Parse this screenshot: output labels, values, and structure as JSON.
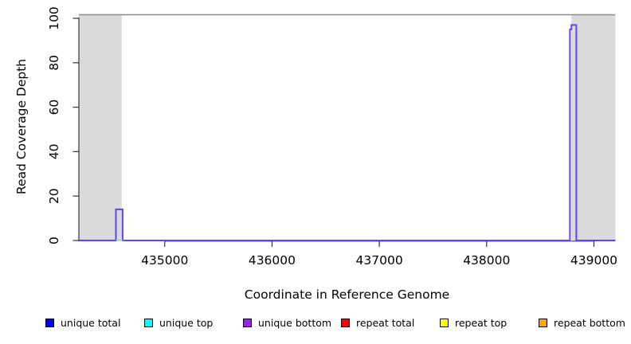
{
  "figure": {
    "background_color": "#ffffff",
    "plot_border_top_color": "#8c8c8c",
    "axis_color": "#333333",
    "shaded_region_color": "#dbdbdb"
  },
  "chart_data": {
    "type": "line",
    "title": "",
    "xlabel": "Coordinate in Reference Genome",
    "ylabel": "Read Coverage Depth",
    "xlim": [
      434200,
      439200
    ],
    "ylim": [
      0,
      100
    ],
    "xticks": [
      435000,
      436000,
      437000,
      438000,
      439000
    ],
    "yticks": [
      0,
      20,
      40,
      60,
      80,
      100
    ],
    "grid": false,
    "legend_position": "bottom",
    "shaded_regions": [
      {
        "x0": 434200,
        "x1": 434600,
        "color": "#dbdbdb",
        "name": "masked-region-left"
      },
      {
        "x0": 438790,
        "x1": 439200,
        "color": "#dbdbdb",
        "name": "masked-region-right"
      }
    ],
    "series": [
      {
        "name": "unique bottom coverage",
        "color": "#5B48EC",
        "line_width": 2,
        "points": [
          [
            434200,
            0
          ],
          [
            434545,
            0
          ],
          [
            434545,
            14
          ],
          [
            434608,
            14
          ],
          [
            434608,
            0
          ],
          [
            438777,
            0
          ],
          [
            438777,
            95
          ],
          [
            438790,
            95
          ],
          [
            438790,
            97
          ],
          [
            438836,
            97
          ],
          [
            438836,
            0
          ],
          [
            439200,
            0
          ]
        ]
      }
    ],
    "baseline_overlap_segment": {
      "x0": 434547,
      "x1": 434608,
      "y": 0,
      "color": "#8FD98F"
    },
    "legend": [
      {
        "label": "unique total",
        "color": "#0000FF"
      },
      {
        "label": "unique top",
        "color": "#00FFFF"
      },
      {
        "label": "unique bottom",
        "color": "#A020F0"
      },
      {
        "label": "repeat total",
        "color": "#FF0000"
      },
      {
        "label": "repeat top",
        "color": "#FFFF00"
      },
      {
        "label": "repeat bottom",
        "color": "#FFA500"
      }
    ]
  }
}
